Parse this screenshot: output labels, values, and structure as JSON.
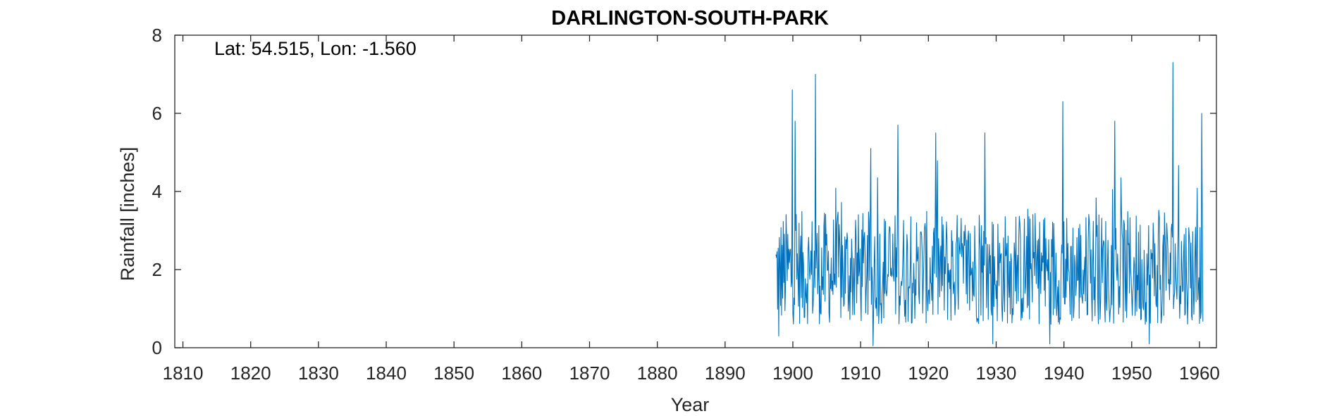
{
  "chart_data": {
    "type": "line",
    "title": "DARLINGTON-SOUTH-PARK",
    "annotation": "Lat: 54.515, Lon: -1.560",
    "xlabel": "Year",
    "ylabel": "Rainfall [inches]",
    "xlim": [
      1808.8,
      1962.5
    ],
    "ylim": [
      0,
      8
    ],
    "xticks": [
      1810,
      1820,
      1830,
      1840,
      1850,
      1860,
      1870,
      1880,
      1890,
      1900,
      1910,
      1920,
      1930,
      1940,
      1950,
      1960
    ],
    "yticks": [
      0,
      2,
      4,
      6,
      8
    ],
    "grid": false,
    "series": [
      {
        "color": "#0072BD",
        "data_start": 1897.5,
        "data_end": 1960.5,
        "sampling": "monthly",
        "peaks": [
          {
            "x": 1899.9,
            "y": 6.6
          },
          {
            "x": 1900.3,
            "y": 5.8
          },
          {
            "x": 1903.3,
            "y": 7.0
          },
          {
            "x": 1911.5,
            "y": 5.1
          },
          {
            "x": 1915.5,
            "y": 5.7
          },
          {
            "x": 1921.1,
            "y": 5.5
          },
          {
            "x": 1928.3,
            "y": 5.5
          },
          {
            "x": 1939.8,
            "y": 6.3
          },
          {
            "x": 1947.5,
            "y": 5.8
          },
          {
            "x": 1956.1,
            "y": 7.3
          },
          {
            "x": 1960.3,
            "y": 6.0
          }
        ],
        "troughs": [
          {
            "x": 1897.9,
            "y": 0.3
          },
          {
            "x": 1911.8,
            "y": 0.05
          },
          {
            "x": 1929.5,
            "y": 0.1
          },
          {
            "x": 1937.9,
            "y": 0.1
          },
          {
            "x": 1952.6,
            "y": 0.1
          }
        ]
      }
    ]
  }
}
